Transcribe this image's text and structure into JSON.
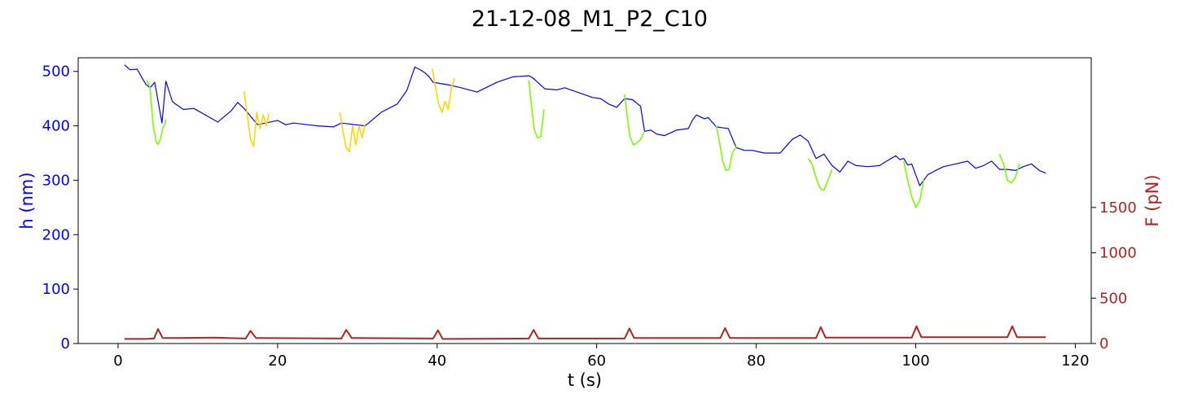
{
  "chart_data": {
    "type": "line",
    "title": "21-12-08_M1_P2_C10",
    "xlabel": "t (s)",
    "ylabel_left": "h (nm)",
    "ylabel_right": "F (pN)",
    "xlim": [
      -5,
      122
    ],
    "ylim_left": [
      0,
      525
    ],
    "ylim_right": [
      0,
      3150
    ],
    "x_ticks": [
      0,
      20,
      40,
      60,
      80,
      100,
      120
    ],
    "y_left_ticks": [
      0,
      100,
      200,
      300,
      400,
      500
    ],
    "y_right_ticks": [
      0,
      500,
      1000,
      1500
    ],
    "grid": false,
    "colors": {
      "h": "#0000ff",
      "compression_green": "#7cfc00",
      "compression_gold": "#ffd700",
      "force": "#b22222",
      "axis_text_left": "#0000ff",
      "axis_text_right": "#b22222"
    },
    "series": [
      {
        "color_key": "h",
        "axis": "left",
        "x": [
          0.8,
          1.5,
          2.4,
          3.0,
          3.5,
          4.0,
          4.6,
          5.5,
          6.0,
          6.8,
          7.2,
          8.2,
          9.5,
          12.5,
          14.2,
          15.0,
          15.8,
          17.5,
          18.5,
          20.0,
          21.0,
          22.0,
          25.0,
          27.0,
          28.0,
          31.0,
          33.0,
          35.0,
          36.2,
          37.2,
          38.0,
          38.5,
          39.0,
          39.5,
          41.5,
          43.0,
          45.0,
          47.5,
          48.5,
          49.5,
          51.5,
          52.0,
          53.5,
          55.0,
          56.0,
          59.5,
          60.5,
          61.5,
          62.5,
          63.5,
          64.5,
          65.5,
          66.0,
          66.8,
          67.5,
          68.5,
          70.0,
          71.5,
          72.0,
          72.5,
          73.5,
          74.0,
          75.0,
          76.5,
          77.5,
          78.5,
          79.5,
          81.0,
          83.0,
          84.5,
          85.5,
          86.5,
          87.5,
          88.5,
          89.5,
          90.5,
          91.5,
          92.5,
          94.0,
          95.5,
          96.0,
          97.5,
          98.0,
          98.5,
          99.0,
          99.5,
          100.5,
          101.5,
          102.5,
          103.5,
          105.0,
          106.5,
          107.5,
          108.5,
          109.5,
          110.5,
          111.5,
          112.5,
          113.5,
          114.5,
          115.5,
          116.3
        ],
        "y": [
          512,
          503,
          504,
          488,
          476,
          470,
          480,
          405,
          482,
          445,
          440,
          430,
          432,
          407,
          428,
          443,
          432,
          402,
          405,
          410,
          402,
          405,
          400,
          398,
          405,
          400,
          425,
          440,
          465,
          508,
          502,
          497,
          490,
          480,
          475,
          470,
          462,
          480,
          485,
          490,
          492,
          488,
          468,
          466,
          470,
          452,
          450,
          440,
          434,
          450,
          448,
          436,
          390,
          392,
          385,
          382,
          392,
          395,
          410,
          420,
          413,
          415,
          398,
          395,
          360,
          355,
          355,
          350,
          350,
          375,
          383,
          372,
          340,
          348,
          327,
          315,
          335,
          327,
          325,
          327,
          332,
          345,
          338,
          340,
          328,
          330,
          290,
          310,
          318,
          325,
          330,
          335,
          322,
          327,
          335,
          320,
          320,
          318,
          325,
          330,
          318,
          313
        ]
      },
      {
        "color_key": "compression_green",
        "axis": "left",
        "segments": [
          {
            "x": [
              3.6,
              4.0,
              4.4,
              4.8,
              5.0,
              5.3,
              5.6,
              5.9,
              6.0
            ],
            "y": [
              484,
              470,
              400,
              370,
              366,
              375,
              395,
              405,
              412
            ]
          },
          {
            "x": [
              51.5,
              51.8,
              52.2,
              52.6,
              53.0,
              53.4
            ],
            "y": [
              484,
              440,
              392,
              378,
              380,
              430
            ]
          },
          {
            "x": [
              63.5,
              63.8,
              64.2,
              64.6,
              65.0,
              65.5,
              66.0
            ],
            "y": [
              458,
              420,
              380,
              365,
              368,
              375,
              390
            ]
          },
          {
            "x": [
              75.0,
              75.4,
              75.8,
              76.2,
              76.6,
              77.0,
              77.5
            ],
            "y": [
              400,
              370,
              335,
              318,
              320,
              350,
              362
            ]
          },
          {
            "x": [
              86.5,
              87.0,
              87.5,
              88.0,
              88.5,
              89.0,
              89.5
            ],
            "y": [
              340,
              330,
              305,
              285,
              282,
              300,
              320
            ]
          },
          {
            "x": [
              98.5,
              99.0,
              99.5,
              100.0,
              100.5,
              101.0
            ],
            "y": [
              335,
              300,
              270,
              250,
              262,
              300
            ]
          },
          {
            "x": [
              110.5,
              111.0,
              111.5,
              112.0,
              112.5,
              113.0
            ],
            "y": [
              348,
              330,
              300,
              295,
              305,
              330
            ]
          }
        ]
      },
      {
        "color_key": "compression_gold",
        "axis": "left",
        "segments": [
          {
            "x": [
              15.8,
              16.2,
              16.6,
              17.0,
              17.4,
              17.8,
              18.2,
              18.6,
              18.9
            ],
            "y": [
              464,
              420,
              375,
              362,
              425,
              395,
              420,
              400,
              422
            ]
          },
          {
            "x": [
              27.8,
              28.2,
              28.6,
              29.0,
              29.4,
              29.8,
              30.2,
              30.6,
              31.0
            ],
            "y": [
              425,
              390,
              360,
              352,
              400,
              365,
              400,
              378,
              405
            ]
          },
          {
            "x": [
              39.4,
              39.8,
              40.2,
              40.6,
              41.0,
              41.4,
              41.8,
              42.2
            ],
            "y": [
              505,
              470,
              440,
              425,
              445,
              430,
              470,
              487
            ]
          }
        ]
      },
      {
        "color_key": "force",
        "axis": "right",
        "x": [
          0.8,
          3.5,
          4.5,
          5.0,
          5.6,
          7.0,
          12.0,
          16.0,
          16.6,
          17.3,
          18.2,
          28.0,
          28.6,
          29.3,
          30.0,
          39.5,
          40.1,
          40.7,
          41.4,
          51.5,
          52.1,
          52.7,
          53.4,
          63.5,
          64.1,
          64.7,
          65.4,
          75.5,
          76.1,
          76.7,
          77.4,
          87.5,
          88.1,
          88.7,
          89.4,
          99.5,
          100.1,
          100.7,
          101.4,
          111.5,
          112.1,
          112.7,
          113.4,
          116.3
        ],
        "y": [
          50,
          50,
          55,
          160,
          60,
          60,
          65,
          55,
          140,
          60,
          60,
          55,
          150,
          60,
          60,
          55,
          145,
          50,
          50,
          55,
          150,
          55,
          55,
          55,
          165,
          60,
          60,
          60,
          170,
          60,
          60,
          60,
          180,
          65,
          65,
          65,
          190,
          70,
          70,
          70,
          190,
          70,
          70,
          70
        ]
      }
    ]
  }
}
